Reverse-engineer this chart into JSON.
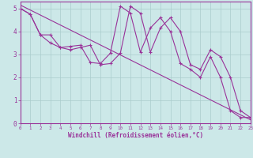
{
  "background_color": "#cce8e8",
  "grid_color": "#aacccc",
  "line_color": "#993399",
  "xlabel": "Windchill (Refroidissement éolien,°C)",
  "xlim": [
    0,
    23
  ],
  "ylim": [
    0,
    5.3
  ],
  "xticks": [
    0,
    1,
    2,
    3,
    4,
    5,
    6,
    7,
    8,
    9,
    10,
    11,
    12,
    13,
    14,
    15,
    16,
    17,
    18,
    19,
    20,
    21,
    22,
    23
  ],
  "yticks": [
    0,
    1,
    2,
    3,
    4,
    5
  ],
  "straight_line": {
    "x": [
      0,
      23
    ],
    "y": [
      5.15,
      0.15
    ]
  },
  "line1": {
    "x": [
      0,
      1,
      2,
      3,
      4,
      5,
      6,
      7,
      8,
      9,
      10,
      11,
      12,
      13,
      14,
      15,
      16,
      17,
      18,
      19,
      20,
      21,
      22,
      23
    ],
    "y": [
      5.0,
      4.75,
      3.85,
      3.85,
      3.3,
      3.35,
      3.4,
      2.65,
      2.6,
      3.05,
      5.1,
      4.8,
      3.1,
      4.15,
      4.6,
      4.0,
      2.6,
      2.35,
      2.0,
      2.9,
      2.0,
      0.55,
      0.25,
      0.25
    ]
  },
  "line2": {
    "x": [
      0,
      1,
      2,
      3,
      4,
      5,
      6,
      7,
      8,
      9,
      10,
      11,
      12,
      13,
      14,
      15,
      16,
      17,
      18,
      19,
      20,
      21,
      22,
      23
    ],
    "y": [
      5.0,
      4.75,
      3.85,
      3.5,
      3.3,
      3.2,
      3.3,
      3.4,
      2.55,
      2.6,
      3.05,
      5.1,
      4.8,
      3.1,
      4.15,
      4.6,
      4.0,
      2.55,
      2.35,
      3.2,
      2.9,
      2.0,
      0.55,
      0.25
    ]
  }
}
